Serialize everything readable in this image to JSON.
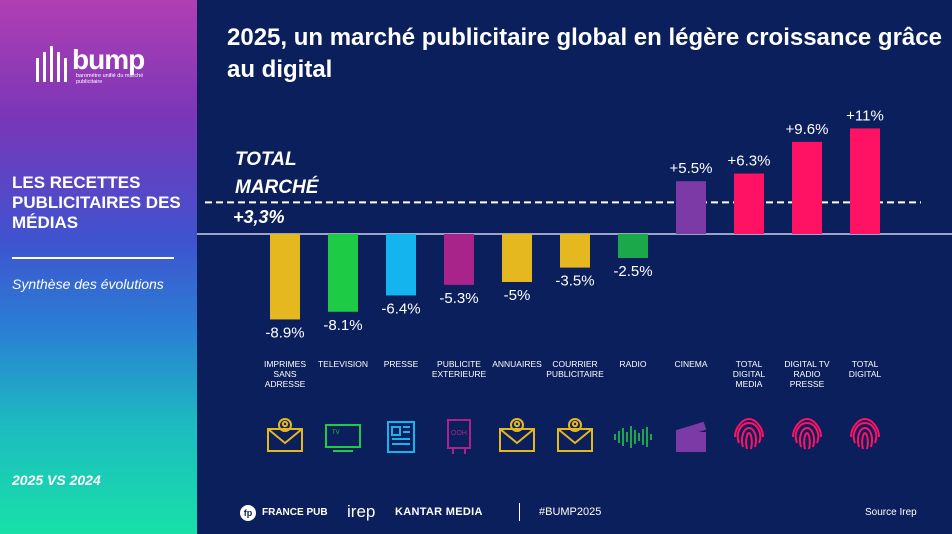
{
  "sidebar": {
    "logo_word": "bump",
    "logo_sub": "baromètre unifié du marché publicitaire",
    "title": "LES RECETTES PUBLICITAIRES DES MÉDIAS",
    "subtitle": "Synthèse des évolutions",
    "period": "2025 VS 2024"
  },
  "header": {
    "title": "2025, un marché publicitaire global en légère croissance grâce au digital"
  },
  "chart_data": {
    "type": "bar",
    "categories": [
      "IMPRIMES SANS ADRESSE",
      "TELEVISION",
      "PRESSE",
      "PUBLICITE EXTERIEURE",
      "ANNUAIRES",
      "COURRIER PUBLICITAIRE",
      "RADIO",
      "CINEMA",
      "TOTAL DIGITAL MEDIA",
      "DIGITAL TV RADIO PRESSE",
      "TOTAL DIGITAL"
    ],
    "values": [
      -8.9,
      -8.1,
      -6.4,
      -5.3,
      -5.0,
      -3.5,
      -2.5,
      5.5,
      6.3,
      9.6,
      11.0
    ],
    "data_labels": [
      "-8.9%",
      "-8.1%",
      "-6.4%",
      "-5.3%",
      "-5%",
      "-3.5%",
      "-2.5%",
      "+5.5%",
      "+6.3%",
      "+9.6%",
      "+11%"
    ],
    "colors": [
      "#e5b81f",
      "#1ecb45",
      "#14b4ee",
      "#a8248a",
      "#e5b81f",
      "#e5b81f",
      "#1aa84a",
      "#7b3aa6",
      "#ff1264",
      "#ff1264",
      "#ff1264"
    ],
    "icons": [
      "mail-icon",
      "tv-icon",
      "newspaper-icon",
      "ooh-billboard-icon",
      "mail-icon",
      "mail-icon",
      "radio-wave-icon",
      "clapperboard-icon",
      "fingerprint-icon",
      "fingerprint-icon",
      "fingerprint-icon"
    ],
    "reference": {
      "label_line1": "TOTAL",
      "label_line2": "MARCHÉ",
      "value_label": "+3,3%",
      "value": 3.3
    },
    "ylim": [
      -9,
      11
    ]
  },
  "footer": {
    "fp_mark": "fp",
    "france_pub": "FRANCE PUB",
    "irep": "irep",
    "kantar": "KANTAR MEDIA",
    "hashtag": "#BUMP2025",
    "source": "Source Irep"
  }
}
